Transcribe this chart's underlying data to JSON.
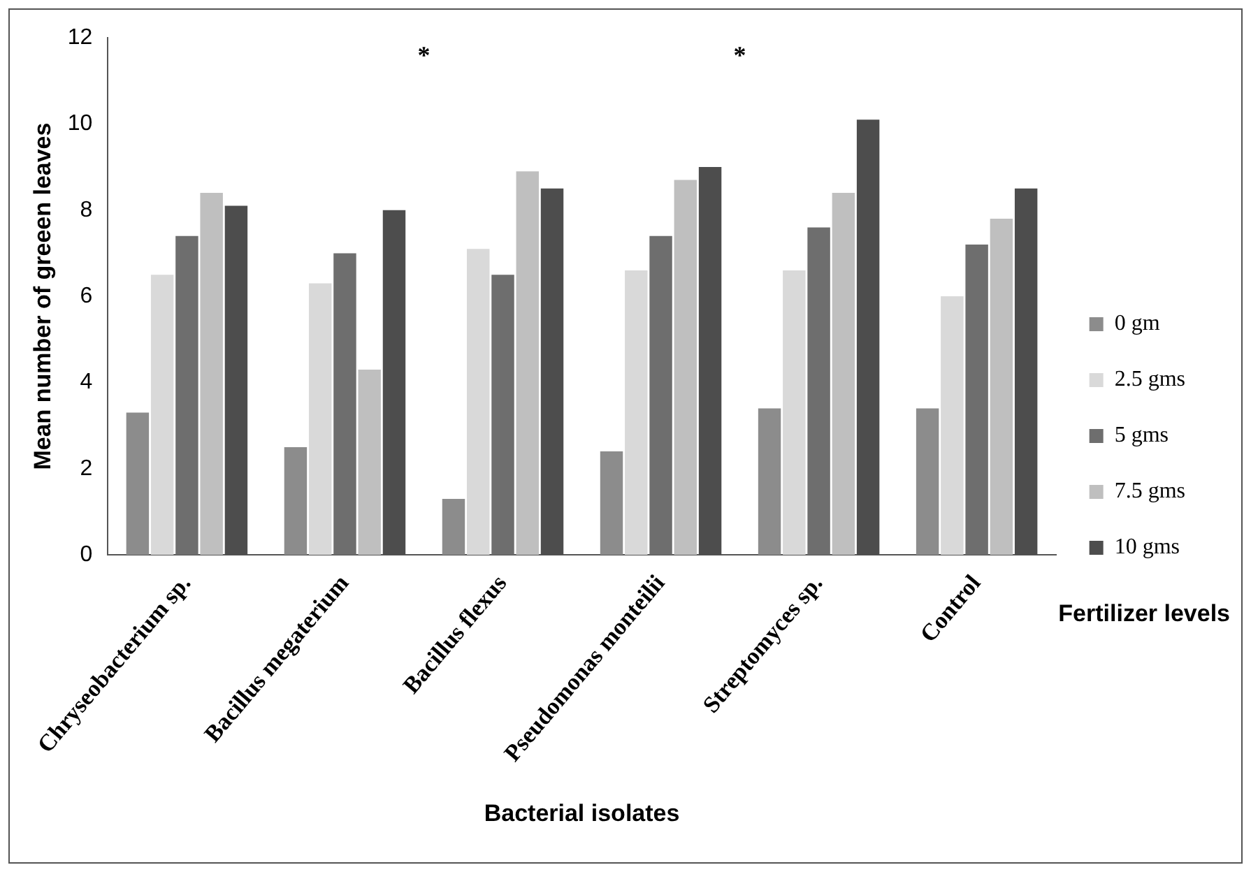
{
  "chart_data": {
    "type": "bar",
    "xlabel": "Bacterial isolates",
    "ylabel": "Mean number of greeen leaves",
    "legend_title": "Fertilizer levels",
    "categories": [
      "Chryseobacterium sp.",
      "Bacillus megaterium",
      "Bacillus flexus",
      "Pseudomonas monteilii",
      "Streptomyces sp.",
      "Control"
    ],
    "series": [
      {
        "name": "0 gm",
        "color": "#8c8c8c",
        "values": [
          3.3,
          2.5,
          1.3,
          2.4,
          3.4,
          3.4
        ]
      },
      {
        "name": "2.5 gms",
        "color": "#d9d9d9",
        "values": [
          6.5,
          6.3,
          7.1,
          6.6,
          6.6,
          6.0
        ]
      },
      {
        "name": "5 gms",
        "color": "#6e6e6e",
        "values": [
          7.4,
          7.0,
          6.5,
          7.4,
          7.6,
          7.2
        ]
      },
      {
        "name": "7.5 gms",
        "color": "#bfbfbf",
        "values": [
          8.4,
          4.3,
          8.9,
          8.7,
          8.4,
          7.8
        ]
      },
      {
        "name": "10 gms",
        "color": "#4d4d4d",
        "values": [
          8.1,
          8.0,
          8.5,
          9.0,
          10.1,
          8.5
        ]
      }
    ],
    "annotations": [
      "*",
      "*"
    ],
    "ylim": [
      0,
      12
    ],
    "yticks": [
      0,
      2,
      4,
      6,
      8,
      10,
      12
    ],
    "grid": false,
    "legend": "right"
  }
}
